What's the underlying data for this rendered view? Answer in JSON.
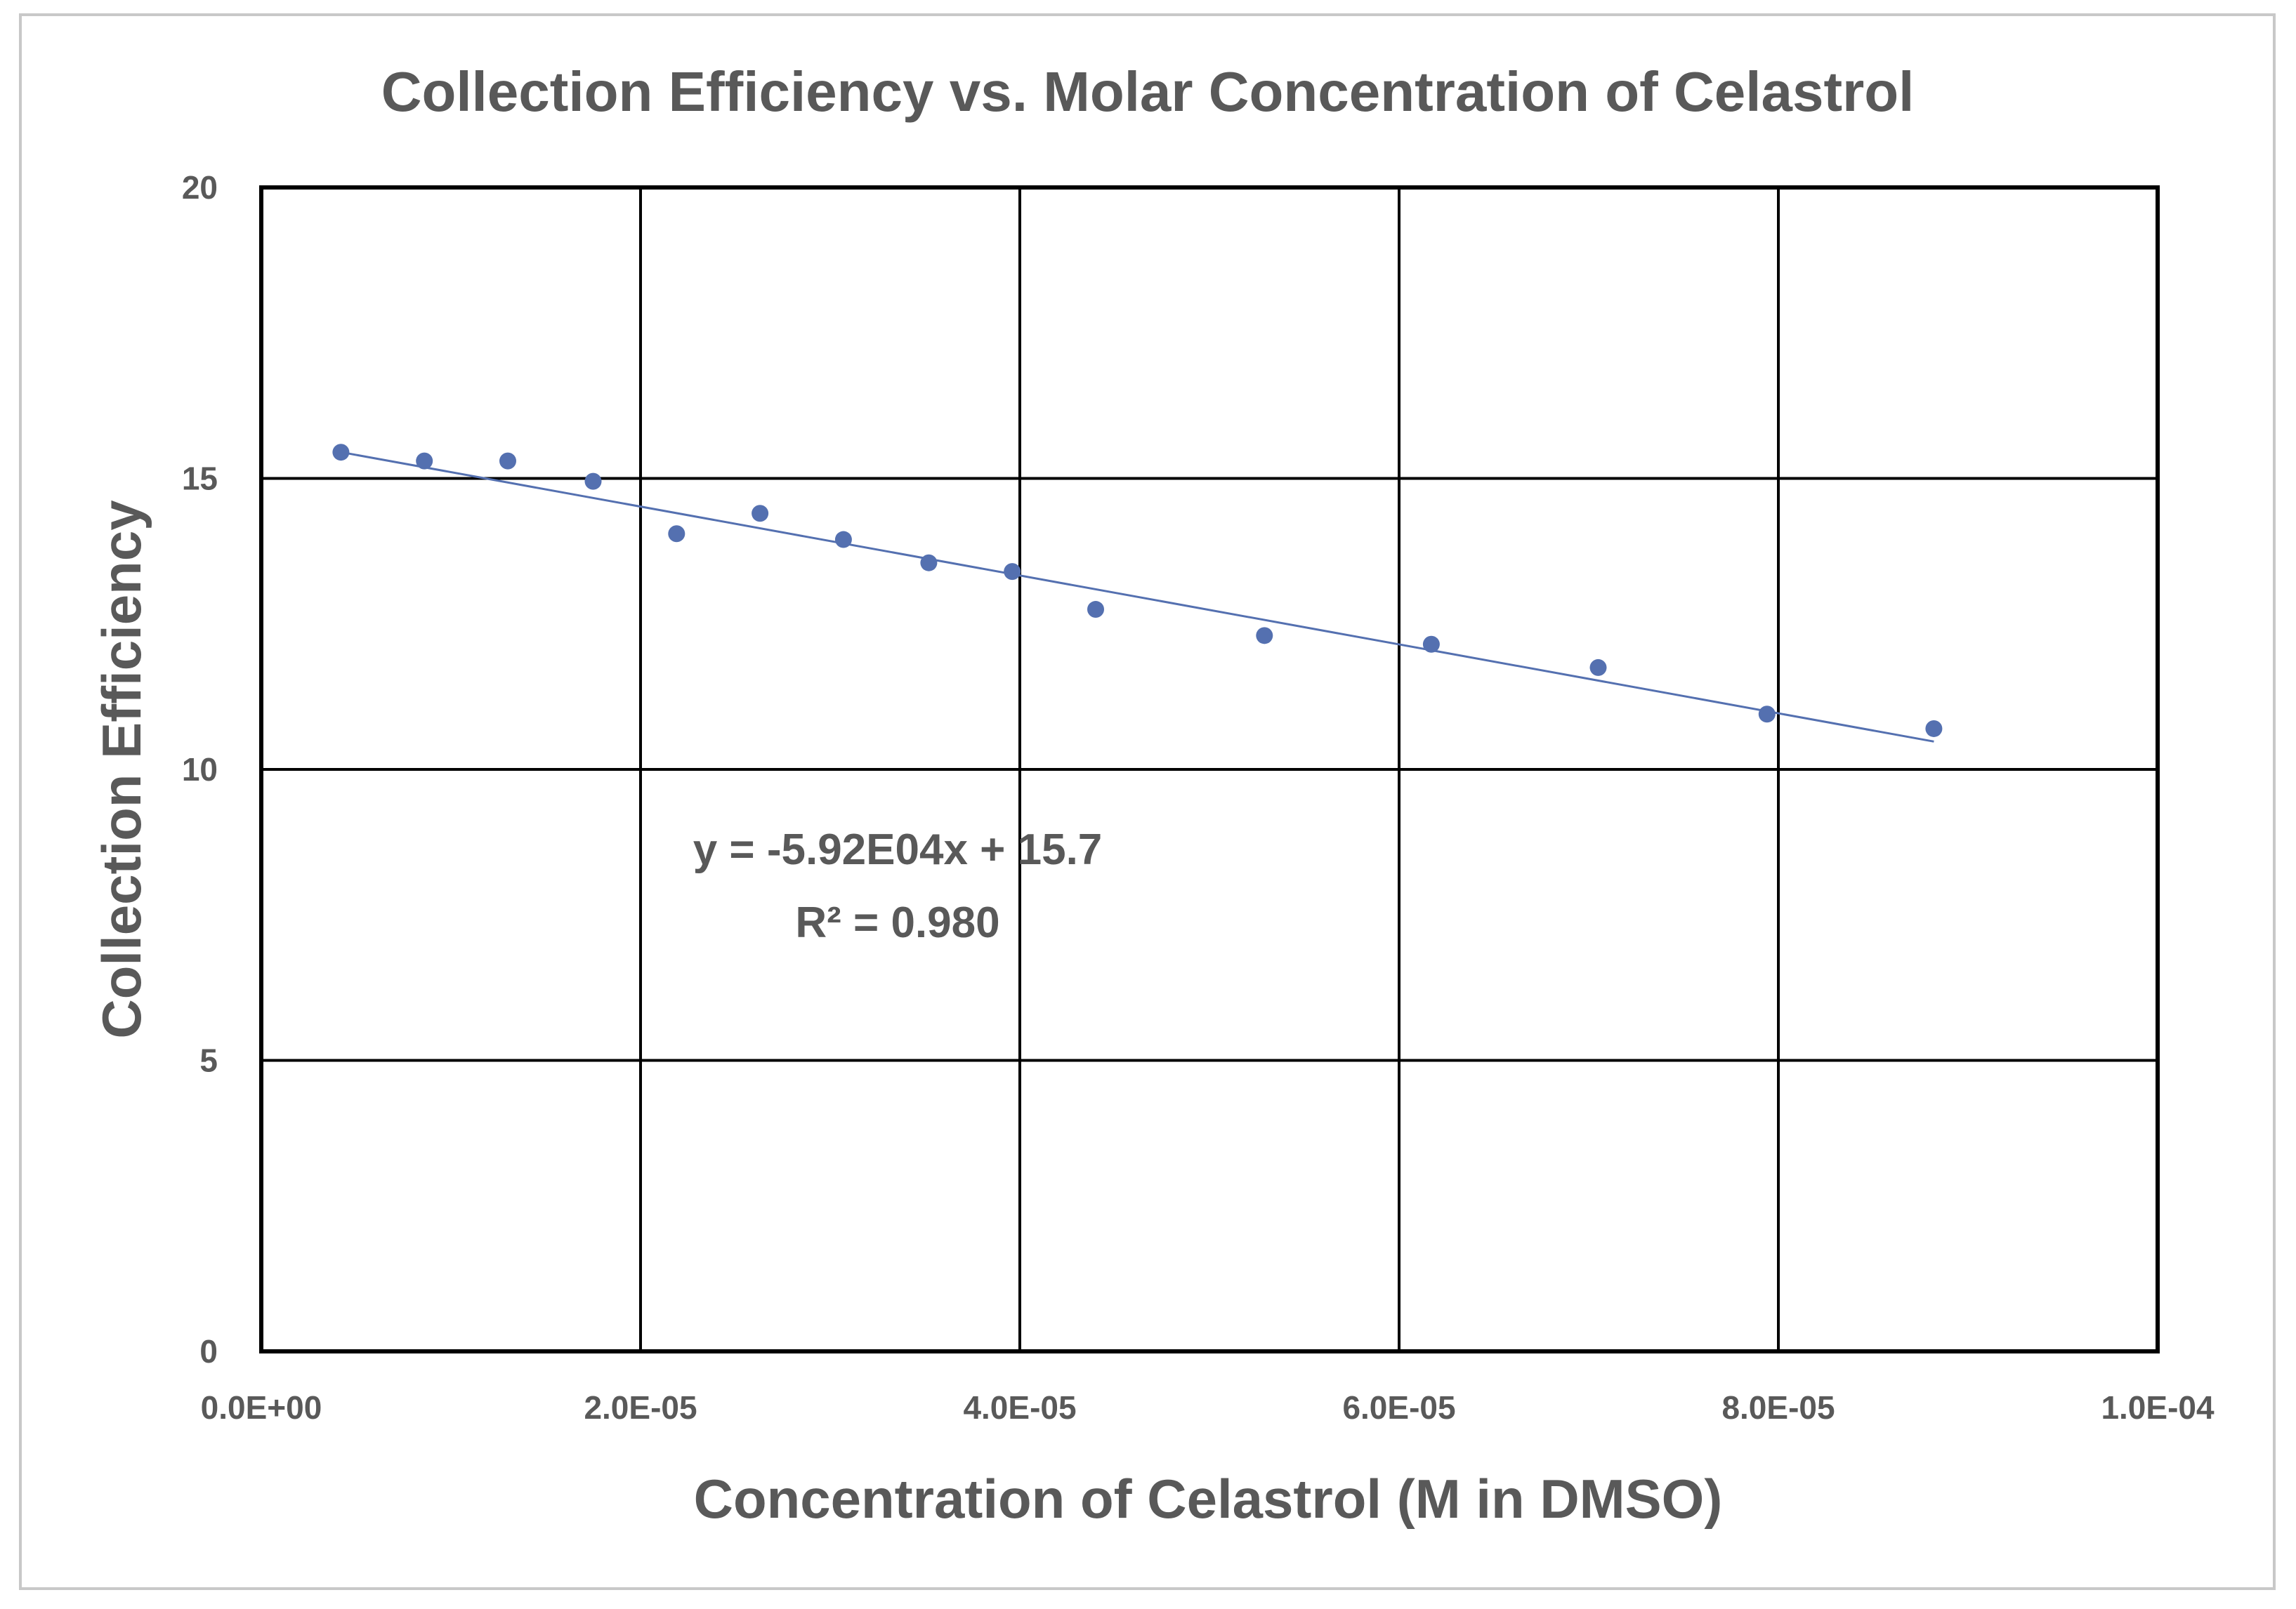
{
  "chart_data": {
    "type": "scatter",
    "title": "Collection Efficiency vs. Molar Concentration of Celastrol",
    "xlabel": "Concentration of Celastrol (M in DMSO)",
    "ylabel": "Collection Efficiency",
    "xlim": [
      0,
      0.0001
    ],
    "ylim": [
      0,
      20
    ],
    "grid": true,
    "xticks": [
      0,
      2e-05,
      4e-05,
      6e-05,
      8e-05,
      0.0001
    ],
    "xtick_labels": [
      "0.0E+00",
      "2.0E-05",
      "4.0E-05",
      "6.0E-05",
      "8.0E-05",
      "1.0E-04"
    ],
    "yticks": [
      0,
      5,
      10,
      15,
      20
    ],
    "ytick_labels": [
      "0",
      "5",
      "10",
      "15",
      "20"
    ],
    "series": [
      {
        "name": "Collection Efficiency",
        "color": "#5470b0",
        "x": [
          4.2e-06,
          8.6e-06,
          1.3e-05,
          1.75e-05,
          2.19e-05,
          2.63e-05,
          3.07e-05,
          3.52e-05,
          3.96e-05,
          4.4e-05,
          5.29e-05,
          6.17e-05,
          7.05e-05,
          7.94e-05,
          8.82e-05
        ],
        "y": [
          15.45,
          15.3,
          15.3,
          14.95,
          14.05,
          14.4,
          13.95,
          13.55,
          13.4,
          12.75,
          12.3,
          12.15,
          11.75,
          10.95,
          10.7
        ]
      }
    ],
    "trendline": {
      "type": "linear",
      "slope": -59200,
      "intercept": 15.7,
      "x_range": [
        4.2e-06,
        8.82e-05
      ],
      "color": "#5470b0",
      "equation_label": "y = -5.92E04x + 15.7",
      "r2_label": "R² = 0.980"
    }
  }
}
